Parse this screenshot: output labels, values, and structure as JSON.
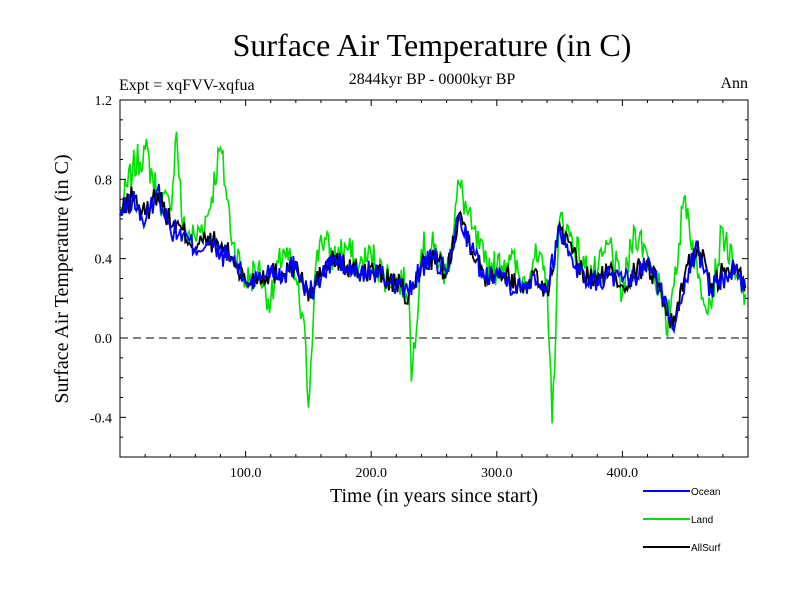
{
  "chart_data": {
    "type": "line",
    "title": "Surface Air Temperature (in C)",
    "subtitle_left": "Expt = xqFVV-xqfua",
    "subtitle_center": "2844kyr BP - 0000kyr BP",
    "subtitle_right": "Ann",
    "xlabel": "Time (in years since start)",
    "ylabel": "Surface Air Temperature (in C)",
    "xlim": [
      0,
      500
    ],
    "ylim": [
      -0.6,
      1.2
    ],
    "x_ticks": [
      100,
      200,
      300,
      400
    ],
    "x_tick_labels": [
      "100.0",
      "200.0",
      "300.0",
      "400.0"
    ],
    "y_ticks": [
      -0.4,
      0.0,
      0.4,
      0.8,
      1.2
    ],
    "y_tick_labels": [
      "-0.4",
      "0.0",
      "0.4",
      "0.8",
      "1.2"
    ],
    "reference_line": {
      "y": 0.0,
      "style": "dashed"
    },
    "series": [
      {
        "name": "Land",
        "color": "#00e000",
        "x": [
          0,
          10,
          20,
          30,
          40,
          45,
          50,
          60,
          70,
          80,
          90,
          100,
          110,
          120,
          130,
          140,
          148,
          150,
          155,
          160,
          170,
          180,
          190,
          200,
          210,
          220,
          230,
          232,
          240,
          250,
          260,
          270,
          280,
          290,
          300,
          310,
          320,
          330,
          340,
          344,
          350,
          360,
          370,
          380,
          390,
          400,
          410,
          420,
          430,
          435,
          440,
          450,
          460,
          470,
          480,
          490,
          498
        ],
        "values": [
          0.62,
          0.85,
          0.95,
          0.72,
          0.65,
          1.04,
          0.55,
          0.5,
          0.62,
          0.96,
          0.48,
          0.28,
          0.35,
          0.18,
          0.45,
          0.3,
          -0.05,
          -0.35,
          0.3,
          0.52,
          0.4,
          0.46,
          0.35,
          0.42,
          0.32,
          0.3,
          0.25,
          -0.22,
          0.45,
          0.45,
          0.32,
          0.78,
          0.55,
          0.38,
          0.35,
          0.42,
          0.28,
          0.4,
          0.3,
          -0.43,
          0.6,
          0.5,
          0.35,
          0.32,
          0.48,
          0.22,
          0.55,
          0.42,
          0.25,
          0.02,
          0.25,
          0.72,
          0.3,
          0.18,
          0.55,
          0.3,
          0.22
        ]
      },
      {
        "name": "Ocean",
        "color": "#0000ff",
        "x": [
          0,
          10,
          20,
          30,
          40,
          50,
          60,
          70,
          80,
          90,
          100,
          110,
          120,
          130,
          140,
          150,
          160,
          170,
          180,
          190,
          200,
          210,
          220,
          230,
          240,
          250,
          260,
          270,
          280,
          290,
          300,
          310,
          320,
          330,
          340,
          350,
          360,
          370,
          380,
          390,
          400,
          410,
          420,
          430,
          440,
          450,
          460,
          470,
          480,
          490,
          498
        ],
        "values": [
          0.62,
          0.7,
          0.58,
          0.75,
          0.55,
          0.52,
          0.45,
          0.48,
          0.42,
          0.4,
          0.28,
          0.3,
          0.35,
          0.32,
          0.38,
          0.22,
          0.3,
          0.4,
          0.35,
          0.32,
          0.34,
          0.3,
          0.28,
          0.22,
          0.36,
          0.4,
          0.32,
          0.62,
          0.45,
          0.3,
          0.35,
          0.28,
          0.25,
          0.32,
          0.25,
          0.55,
          0.4,
          0.3,
          0.28,
          0.32,
          0.28,
          0.3,
          0.38,
          0.25,
          0.05,
          0.3,
          0.45,
          0.25,
          0.3,
          0.35,
          0.25
        ]
      },
      {
        "name": "AllSurf",
        "color": "#000000",
        "x": [
          0,
          10,
          20,
          30,
          40,
          50,
          60,
          70,
          80,
          90,
          100,
          110,
          120,
          130,
          140,
          150,
          160,
          170,
          180,
          190,
          200,
          210,
          220,
          230,
          240,
          250,
          260,
          270,
          280,
          290,
          300,
          310,
          320,
          330,
          340,
          350,
          360,
          370,
          380,
          390,
          400,
          410,
          420,
          430,
          440,
          450,
          460,
          470,
          480,
          490,
          498
        ],
        "values": [
          0.62,
          0.72,
          0.62,
          0.74,
          0.58,
          0.54,
          0.46,
          0.5,
          0.46,
          0.4,
          0.28,
          0.31,
          0.33,
          0.33,
          0.37,
          0.2,
          0.32,
          0.4,
          0.36,
          0.33,
          0.35,
          0.3,
          0.28,
          0.2,
          0.37,
          0.41,
          0.32,
          0.64,
          0.46,
          0.31,
          0.35,
          0.3,
          0.25,
          0.33,
          0.22,
          0.56,
          0.42,
          0.31,
          0.29,
          0.34,
          0.27,
          0.33,
          0.38,
          0.25,
          0.05,
          0.33,
          0.48,
          0.25,
          0.33,
          0.35,
          0.25
        ]
      }
    ],
    "legend": [
      {
        "label": "Ocean",
        "color": "#0000ff"
      },
      {
        "label": "Land",
        "color": "#00e000"
      },
      {
        "label": "AllSurf",
        "color": "#000000"
      }
    ],
    "legend_position": "bottom-right"
  }
}
